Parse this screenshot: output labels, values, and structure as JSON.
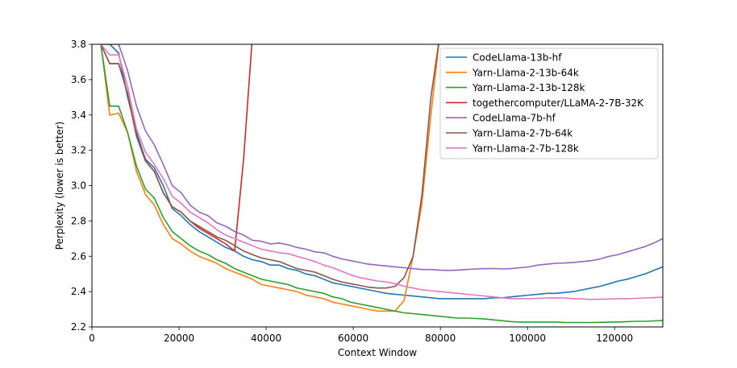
{
  "chart_data": {
    "type": "line",
    "title": "",
    "xlabel": "Context Window",
    "ylabel": "Perplexity (lower is better)",
    "xlim": [
      0,
      131072
    ],
    "ylim": [
      2.2,
      3.8
    ],
    "xticks": [
      0,
      20000,
      40000,
      60000,
      80000,
      100000,
      120000
    ],
    "xtick_labels": [
      "0",
      "20000",
      "40000",
      "60000",
      "80000",
      "100000",
      "120000"
    ],
    "yticks": [
      2.2,
      2.4,
      2.6,
      2.8,
      3.0,
      3.2,
      3.4,
      3.6,
      3.8
    ],
    "ytick_labels": [
      "2.2",
      "2.4",
      "2.6",
      "2.8",
      "3.0",
      "3.2",
      "3.4",
      "3.6",
      "3.8"
    ],
    "grid": false,
    "legend_position": "top-right",
    "series": [
      {
        "name": "CodeLlama-13b-hf",
        "color": "#1f77b4",
        "x": [
          2048,
          4096,
          6144,
          8192,
          10240,
          12288,
          14336,
          16384,
          18432,
          20480,
          22528,
          24576,
          26624,
          28672,
          30720,
          32768,
          34816,
          36864,
          38912,
          40960,
          43008,
          45056,
          47104,
          49152,
          51200,
          53248,
          55296,
          57344,
          59392,
          61440,
          63488,
          65536,
          67584,
          69632,
          71680,
          73728,
          75776,
          77824,
          79872,
          81920,
          83968,
          86016,
          88064,
          90112,
          92160,
          94208,
          96256,
          98304,
          100352,
          102400,
          104448,
          106496,
          108544,
          110592,
          112640,
          114688,
          116736,
          118784,
          120832,
          122880,
          124928,
          126976,
          129024,
          131072
        ],
        "y": [
          3.8,
          3.8,
          3.75,
          3.5,
          3.3,
          3.15,
          3.1,
          3.0,
          2.87,
          2.83,
          2.78,
          2.74,
          2.71,
          2.68,
          2.65,
          2.63,
          2.6,
          2.58,
          2.57,
          2.55,
          2.55,
          2.53,
          2.52,
          2.5,
          2.49,
          2.47,
          2.45,
          2.44,
          2.43,
          2.42,
          2.41,
          2.4,
          2.39,
          2.385,
          2.38,
          2.375,
          2.37,
          2.365,
          2.36,
          2.36,
          2.36,
          2.36,
          2.36,
          2.36,
          2.365,
          2.365,
          2.37,
          2.375,
          2.38,
          2.385,
          2.39,
          2.39,
          2.395,
          2.4,
          2.41,
          2.42,
          2.43,
          2.445,
          2.46,
          2.47,
          2.485,
          2.5,
          2.52,
          2.54
        ]
      },
      {
        "name": "Yarn-Llama-2-13b-64k",
        "color": "#ff7f0e",
        "x": [
          2048,
          4096,
          6144,
          8192,
          10240,
          12288,
          14336,
          16384,
          18432,
          20480,
          22528,
          24576,
          26624,
          28672,
          30720,
          32768,
          34816,
          36864,
          38912,
          40960,
          43008,
          45056,
          47104,
          49152,
          51200,
          53248,
          55296,
          57344,
          59392,
          61440,
          63488,
          65536,
          67584,
          69632,
          71680,
          73728,
          75776,
          77824,
          79872
        ],
        "y": [
          3.8,
          3.4,
          3.41,
          3.3,
          3.08,
          2.95,
          2.89,
          2.78,
          2.7,
          2.67,
          2.63,
          2.6,
          2.58,
          2.56,
          2.53,
          2.51,
          2.49,
          2.47,
          2.44,
          2.43,
          2.42,
          2.41,
          2.4,
          2.38,
          2.37,
          2.36,
          2.34,
          2.33,
          2.32,
          2.31,
          2.3,
          2.29,
          2.29,
          2.29,
          2.35,
          2.6,
          2.9,
          3.4,
          3.85
        ]
      },
      {
        "name": "Yarn-Llama-2-13b-128k",
        "color": "#2ca02c",
        "x": [
          2048,
          4096,
          6144,
          8192,
          10240,
          12288,
          14336,
          16384,
          18432,
          20480,
          22528,
          24576,
          26624,
          28672,
          30720,
          32768,
          34816,
          36864,
          38912,
          40960,
          43008,
          45056,
          47104,
          49152,
          51200,
          53248,
          55296,
          57344,
          59392,
          61440,
          63488,
          65536,
          67584,
          69632,
          71680,
          73728,
          75776,
          77824,
          79872,
          81920,
          83968,
          86016,
          88064,
          90112,
          92160,
          94208,
          96256,
          98304,
          100352,
          102400,
          104448,
          106496,
          108544,
          110592,
          112640,
          114688,
          116736,
          118784,
          120832,
          122880,
          124928,
          126976,
          129024,
          131072
        ],
        "y": [
          3.8,
          3.45,
          3.45,
          3.3,
          3.11,
          2.98,
          2.93,
          2.82,
          2.74,
          2.7,
          2.66,
          2.63,
          2.61,
          2.58,
          2.56,
          2.53,
          2.51,
          2.49,
          2.47,
          2.46,
          2.45,
          2.44,
          2.42,
          2.41,
          2.4,
          2.39,
          2.37,
          2.36,
          2.34,
          2.33,
          2.32,
          2.31,
          2.3,
          2.29,
          2.28,
          2.275,
          2.27,
          2.265,
          2.26,
          2.255,
          2.25,
          2.25,
          2.248,
          2.245,
          2.24,
          2.235,
          2.23,
          2.228,
          2.228,
          2.228,
          2.228,
          2.228,
          2.225,
          2.225,
          2.225,
          2.225,
          2.226,
          2.228,
          2.228,
          2.23,
          2.232,
          2.232,
          2.234,
          2.236
        ]
      },
      {
        "name": "togethercomputer/LLaMA-2-7B-32K",
        "color": "#d62728",
        "x": [
          2048,
          4096,
          6144,
          8192,
          10240,
          12288,
          14336,
          16384,
          18432,
          20480,
          22528,
          24576,
          26624,
          28672,
          30720,
          32768,
          34816,
          36864
        ],
        "y": [
          3.8,
          3.69,
          3.69,
          3.52,
          3.28,
          3.14,
          3.08,
          2.96,
          2.88,
          2.85,
          2.8,
          2.76,
          2.73,
          2.7,
          2.67,
          2.63,
          3.15,
          3.85
        ]
      },
      {
        "name": "CodeLlama-7b-hf",
        "color": "#9467bd",
        "x": [
          4096,
          6144,
          8192,
          10240,
          12288,
          14336,
          16384,
          18432,
          20480,
          22528,
          24576,
          26624,
          28672,
          30720,
          32768,
          34816,
          36864,
          38912,
          40960,
          43008,
          45056,
          47104,
          49152,
          51200,
          53248,
          55296,
          57344,
          59392,
          61440,
          63488,
          65536,
          67584,
          69632,
          71680,
          73728,
          75776,
          77824,
          79872,
          81920,
          83968,
          86016,
          88064,
          90112,
          92160,
          94208,
          96256,
          98304,
          100352,
          102400,
          104448,
          106496,
          108544,
          110592,
          112640,
          114688,
          116736,
          118784,
          120832,
          122880,
          124928,
          126976,
          129024,
          131072
        ],
        "y": [
          3.8,
          3.8,
          3.65,
          3.45,
          3.31,
          3.23,
          3.12,
          3.0,
          2.96,
          2.89,
          2.85,
          2.83,
          2.79,
          2.77,
          2.74,
          2.72,
          2.69,
          2.685,
          2.67,
          2.675,
          2.665,
          2.65,
          2.64,
          2.625,
          2.62,
          2.6,
          2.585,
          2.575,
          2.565,
          2.555,
          2.55,
          2.545,
          2.54,
          2.535,
          2.53,
          2.525,
          2.525,
          2.522,
          2.52,
          2.522,
          2.525,
          2.528,
          2.53,
          2.53,
          2.528,
          2.53,
          2.535,
          2.54,
          2.55,
          2.555,
          2.56,
          2.562,
          2.565,
          2.57,
          2.575,
          2.585,
          2.6,
          2.61,
          2.625,
          2.64,
          2.655,
          2.675,
          2.7
        ]
      },
      {
        "name": "Yarn-Llama-2-7b-64k",
        "color": "#8c564b",
        "x": [
          2048,
          4096,
          6144,
          8192,
          10240,
          12288,
          14336,
          16384,
          18432,
          20480,
          22528,
          24576,
          26624,
          28672,
          30720,
          32768,
          34816,
          36864,
          38912,
          40960,
          43008,
          45056,
          47104,
          49152,
          51200,
          53248,
          55296,
          57344,
          59392,
          61440,
          63488,
          65536,
          67584,
          69632,
          71680,
          73728,
          75776,
          77824,
          79872
        ],
        "y": [
          3.8,
          3.69,
          3.69,
          3.52,
          3.28,
          3.14,
          3.08,
          2.96,
          2.88,
          2.85,
          2.8,
          2.77,
          2.74,
          2.71,
          2.69,
          2.66,
          2.63,
          2.61,
          2.59,
          2.58,
          2.57,
          2.55,
          2.53,
          2.52,
          2.51,
          2.49,
          2.47,
          2.455,
          2.445,
          2.435,
          2.425,
          2.42,
          2.42,
          2.43,
          2.48,
          2.6,
          2.95,
          3.5,
          3.85
        ]
      },
      {
        "name": "Yarn-Llama-2-7b-128k",
        "color": "#e377c2",
        "x": [
          2048,
          4096,
          6144,
          8192,
          10240,
          12288,
          14336,
          16384,
          18432,
          20480,
          22528,
          24576,
          26624,
          28672,
          30720,
          32768,
          34816,
          36864,
          38912,
          40960,
          43008,
          45056,
          47104,
          49152,
          51200,
          53248,
          55296,
          57344,
          59392,
          61440,
          63488,
          65536,
          67584,
          69632,
          71680,
          73728,
          75776,
          77824,
          79872,
          81920,
          83968,
          86016,
          88064,
          90112,
          92160,
          94208,
          96256,
          98304,
          100352,
          102400,
          104448,
          106496,
          108544,
          110592,
          112640,
          114688,
          116736,
          118784,
          120832,
          122880,
          124928,
          126976,
          129024,
          131072
        ],
        "y": [
          3.8,
          3.74,
          3.74,
          3.56,
          3.32,
          3.19,
          3.12,
          3.04,
          2.94,
          2.9,
          2.85,
          2.82,
          2.79,
          2.75,
          2.72,
          2.7,
          2.68,
          2.66,
          2.64,
          2.63,
          2.62,
          2.615,
          2.6,
          2.585,
          2.57,
          2.55,
          2.535,
          2.515,
          2.495,
          2.48,
          2.47,
          2.46,
          2.455,
          2.445,
          2.43,
          2.42,
          2.41,
          2.405,
          2.4,
          2.395,
          2.39,
          2.385,
          2.38,
          2.375,
          2.37,
          2.365,
          2.36,
          2.36,
          2.36,
          2.362,
          2.364,
          2.365,
          2.364,
          2.36,
          2.358,
          2.356,
          2.357,
          2.358,
          2.36,
          2.36,
          2.362,
          2.364,
          2.366,
          2.368
        ]
      }
    ]
  }
}
